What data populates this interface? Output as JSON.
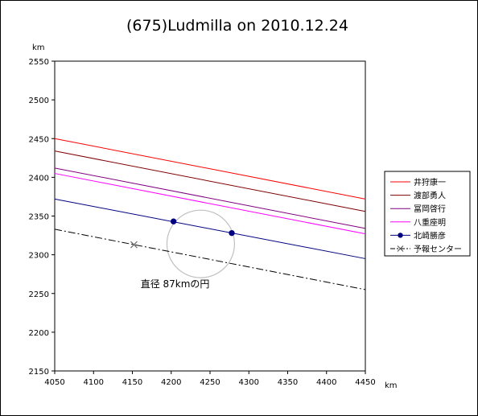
{
  "chart_data": {
    "type": "line",
    "title": "(675)Ludmilla on 2010.12.24",
    "xlabel": "km",
    "ylabel": "km",
    "xlim": [
      4050,
      4450
    ],
    "ylim": [
      2150,
      2550
    ],
    "xticks": [
      4050,
      4100,
      4150,
      4200,
      4250,
      4300,
      4350,
      4400,
      4450
    ],
    "yticks": [
      2150,
      2200,
      2250,
      2300,
      2350,
      2400,
      2450,
      2500,
      2550
    ],
    "grid": false,
    "legend_position": "right",
    "series": [
      {
        "name": "井狩康一",
        "color": "#ff0000",
        "style": "solid",
        "points": [
          [
            4050,
            2450
          ],
          [
            4450,
            2372
          ]
        ]
      },
      {
        "name": "渡部勇人",
        "color": "#800000",
        "style": "solid",
        "points": [
          [
            4050,
            2434
          ],
          [
            4450,
            2356
          ]
        ]
      },
      {
        "name": "冨岡啓行",
        "color": "#800080",
        "style": "solid",
        "points": [
          [
            4050,
            2412
          ],
          [
            4450,
            2334
          ]
        ]
      },
      {
        "name": "八重座明",
        "color": "#ff00ff",
        "style": "solid",
        "points": [
          [
            4050,
            2405
          ],
          [
            4450,
            2327
          ]
        ]
      },
      {
        "name": "北崎勝彦",
        "color": "#000080",
        "style": "solid",
        "points": [
          [
            4050,
            2372
          ],
          [
            4450,
            2295
          ]
        ],
        "markers": [
          [
            4203,
            2343
          ],
          [
            4278,
            2328
          ]
        ]
      },
      {
        "name": "予報センター",
        "color": "#000000",
        "style": "dashdot",
        "points": [
          [
            4050,
            2333
          ],
          [
            4450,
            2255
          ]
        ],
        "markers": [
          [
            4152,
            2313
          ]
        ]
      }
    ],
    "annotations": [
      {
        "text": "直径 87kmの円",
        "x": 4205,
        "y": 2262
      }
    ],
    "circle": {
      "center": [
        4238,
        2314
      ],
      "diameter": 87,
      "color": "#c0c0c0"
    }
  }
}
